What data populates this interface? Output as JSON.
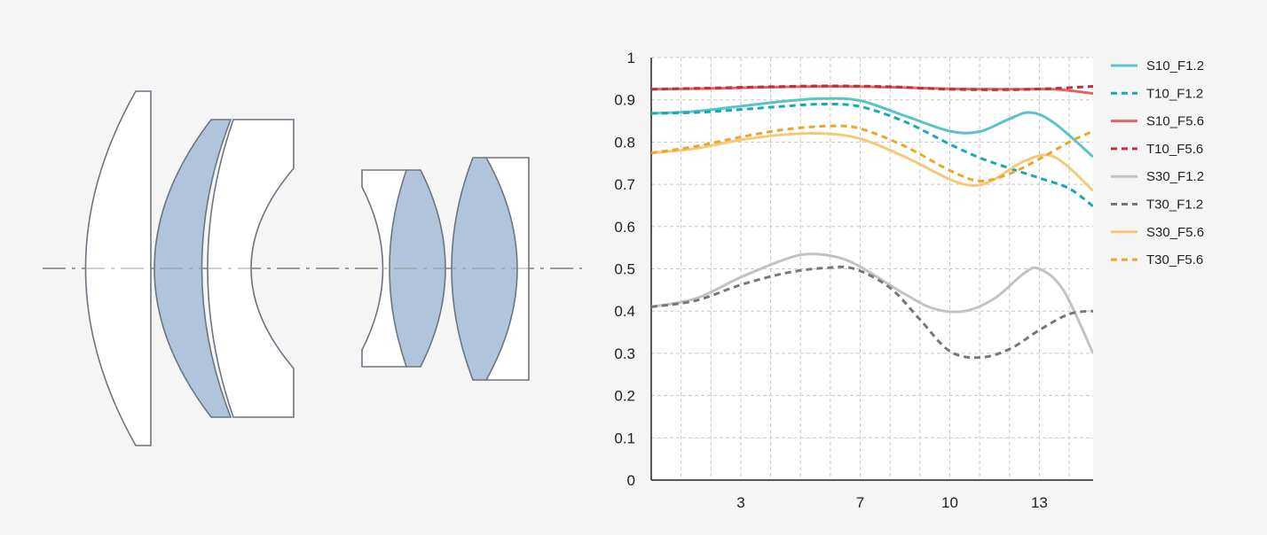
{
  "colors": {
    "background": "#f5f5f5",
    "lens_fill_clear": "#ffffff",
    "lens_fill_blue": "#b0c4dc",
    "lens_stroke": "#6b7682",
    "axis_line": "#aaaaaa",
    "grid": "#c8c8c8"
  },
  "lens_diagram": {
    "element_count": 7,
    "shaded_elements": [
      2,
      5,
      6
    ]
  },
  "chart_data": {
    "type": "line",
    "xlabel": "",
    "ylabel": "",
    "xlim": [
      0,
      14.8
    ],
    "ylim": [
      0,
      1
    ],
    "x_ticks": [
      3,
      7,
      10,
      13
    ],
    "y_ticks": [
      0,
      0.1,
      0.2,
      0.3,
      0.4,
      0.5,
      0.6,
      0.7,
      0.8,
      0.9,
      1
    ],
    "y_tick_labels": [
      "0",
      "0.1",
      "0.2",
      "0.3",
      "0.4",
      "0.5",
      "0.6",
      "0.7",
      "0.8",
      "0.9",
      "1"
    ],
    "grid": true,
    "legend_position": "right",
    "series": [
      {
        "name": "S10_F1.2",
        "color": "#5bc3c6",
        "dash": "solid",
        "x": [
          0,
          1.5,
          3,
          4.5,
          5.8,
          7,
          8.5,
          10,
          11,
          12,
          12.7,
          13.5,
          14.8
        ],
        "y": [
          0.868,
          0.873,
          0.885,
          0.897,
          0.903,
          0.898,
          0.862,
          0.826,
          0.825,
          0.855,
          0.87,
          0.845,
          0.765
        ]
      },
      {
        "name": "T10_F1.2",
        "color": "#1aa9b0",
        "dash": "dashed",
        "x": [
          0,
          1.5,
          3,
          4.5,
          5.8,
          7,
          8.5,
          10,
          11,
          12,
          13,
          14,
          14.8
        ],
        "y": [
          0.868,
          0.87,
          0.877,
          0.885,
          0.89,
          0.884,
          0.848,
          0.795,
          0.763,
          0.738,
          0.715,
          0.69,
          0.648
        ]
      },
      {
        "name": "S10_F5.6",
        "color": "#e06666",
        "dash": "solid",
        "x": [
          0,
          2,
          4,
          6,
          8,
          10,
          12,
          13.5,
          14.8
        ],
        "y": [
          0.925,
          0.927,
          0.93,
          0.932,
          0.93,
          0.926,
          0.925,
          0.925,
          0.915
        ]
      },
      {
        "name": "T10_F5.6",
        "color": "#c0313a",
        "dash": "dashed",
        "x": [
          0,
          2,
          4,
          6,
          8,
          10,
          12,
          13.5,
          14.8
        ],
        "y": [
          0.925,
          0.928,
          0.931,
          0.933,
          0.931,
          0.925,
          0.924,
          0.927,
          0.932
        ]
      },
      {
        "name": "S30_F1.2",
        "color": "#c2c2c2",
        "dash": "solid",
        "x": [
          0,
          1.5,
          3,
          4.5,
          5.3,
          6.2,
          7,
          8.5,
          9.5,
          10.5,
          11.5,
          12.5,
          13,
          13.8,
          14.8
        ],
        "y": [
          0.41,
          0.43,
          0.48,
          0.523,
          0.535,
          0.528,
          0.505,
          0.44,
          0.405,
          0.4,
          0.43,
          0.49,
          0.5,
          0.45,
          0.3
        ]
      },
      {
        "name": "T30_F1.2",
        "color": "#777777",
        "dash": "dashed",
        "x": [
          0,
          1.5,
          3,
          4.5,
          5.8,
          6.8,
          8,
          9,
          10,
          11,
          12,
          13,
          14,
          14.8
        ],
        "y": [
          0.41,
          0.425,
          0.462,
          0.49,
          0.502,
          0.5,
          0.455,
          0.38,
          0.305,
          0.29,
          0.31,
          0.355,
          0.393,
          0.4
        ]
      },
      {
        "name": "S30_F5.6",
        "color": "#f5c97a",
        "dash": "solid",
        "x": [
          0,
          1.5,
          3,
          4.5,
          5.8,
          7,
          8.5,
          10,
          10.8,
          11.5,
          12.5,
          13.5,
          14.8
        ],
        "y": [
          0.774,
          0.785,
          0.805,
          0.818,
          0.82,
          0.808,
          0.765,
          0.712,
          0.697,
          0.712,
          0.755,
          0.765,
          0.685
        ]
      },
      {
        "name": "T30_F5.6",
        "color": "#e8a82b",
        "dash": "dashed",
        "x": [
          0,
          1.5,
          3,
          4.5,
          6,
          7,
          8.5,
          10,
          11,
          12,
          13,
          14,
          14.8
        ],
        "y": [
          0.774,
          0.79,
          0.812,
          0.83,
          0.838,
          0.832,
          0.79,
          0.733,
          0.708,
          0.725,
          0.76,
          0.8,
          0.826
        ]
      }
    ]
  }
}
